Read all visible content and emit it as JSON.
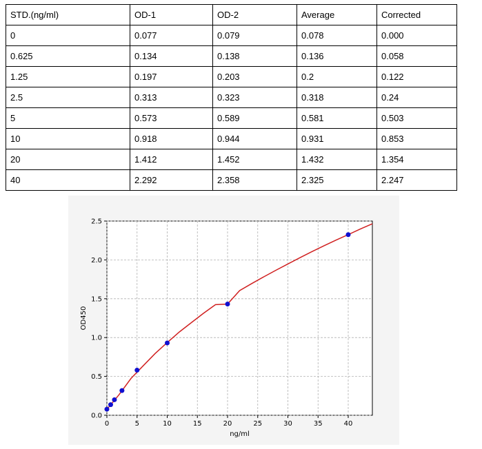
{
  "table": {
    "headers": [
      "STD.(ng/ml)",
      "OD-1",
      "OD-2",
      "Average",
      "Corrected"
    ],
    "rows": [
      [
        "0",
        "0.077",
        "0.079",
        "0.078",
        "0.000"
      ],
      [
        "0.625",
        "0.134",
        "0.138",
        "0.136",
        "0.058"
      ],
      [
        "1.25",
        "0.197",
        "0.203",
        "0.2",
        "0.122"
      ],
      [
        "2.5",
        "0.313",
        "0.323",
        "0.318",
        "0.24"
      ],
      [
        "5",
        "0.573",
        "0.589",
        "0.581",
        "0.503"
      ],
      [
        "10",
        "0.918",
        "0.944",
        "0.931",
        "0.853"
      ],
      [
        "20",
        "1.412",
        "1.452",
        "1.432",
        "1.354"
      ],
      [
        "40",
        "2.292",
        "2.358",
        "2.325",
        "2.247"
      ]
    ]
  },
  "chart_data": {
    "type": "scatter",
    "xlabel": "ng/ml",
    "ylabel": "OD450",
    "xlim": [
      0,
      44
    ],
    "ylim": [
      0,
      2.5
    ],
    "xticks": [
      0,
      5,
      10,
      15,
      20,
      25,
      30,
      35,
      40
    ],
    "yticks": [
      0.0,
      0.5,
      1.0,
      1.5,
      2.0,
      2.5
    ],
    "ytick_labels": [
      "0.0",
      "0.5",
      "1.0",
      "1.5",
      "2.0",
      "2.5"
    ],
    "grid": true,
    "points": {
      "x": [
        0,
        0.625,
        1.25,
        2.5,
        5,
        10,
        20,
        40
      ],
      "y": [
        0.078,
        0.136,
        0.2,
        0.318,
        0.581,
        0.931,
        1.432,
        2.325
      ],
      "color": "#1010d0"
    },
    "fit_curve": {
      "color": "#d02020",
      "x": [
        0,
        2,
        4,
        6,
        8,
        10,
        12,
        14,
        16,
        18,
        20,
        22,
        24,
        26,
        28,
        30,
        32,
        34,
        36,
        38,
        40,
        42,
        44
      ],
      "y": [
        0.076,
        0.263,
        0.474,
        0.636,
        0.795,
        0.936,
        1.072,
        1.192,
        1.312,
        1.424,
        1.432,
        1.605,
        1.695,
        1.782,
        1.866,
        1.948,
        2.028,
        2.107,
        2.183,
        2.255,
        2.325,
        2.397,
        2.465
      ]
    }
  }
}
